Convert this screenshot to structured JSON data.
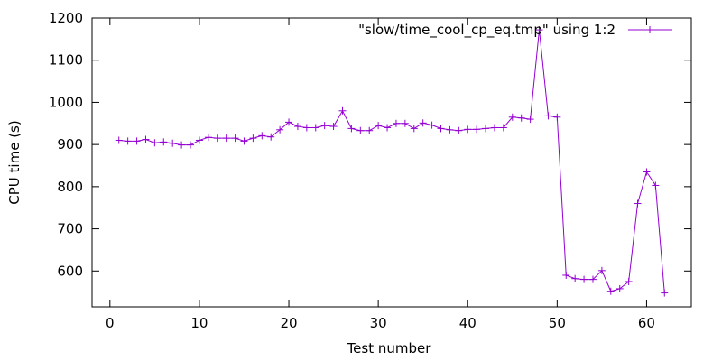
{
  "chart_data": {
    "type": "line",
    "xlabel": "Test number",
    "ylabel": "CPU time (s)",
    "xlim": [
      -2,
      65
    ],
    "ylim": [
      515,
      1200
    ],
    "x_ticks": [
      0,
      10,
      20,
      30,
      40,
      50,
      60
    ],
    "y_ticks": [
      600,
      700,
      800,
      900,
      1000,
      1100,
      1200
    ],
    "x_tick_labels": [
      "0",
      "10",
      "20",
      "30",
      "40",
      "50",
      "60"
    ],
    "y_tick_labels": [
      "600",
      "700",
      "800",
      "900",
      "1000",
      "1100",
      "1200"
    ],
    "grid": false,
    "legend_position": "top-right",
    "series": [
      {
        "name": "\"slow/time_cool_cp_eq.tmp\" using 1:2",
        "color": "#9400d3",
        "marker": "plus",
        "x": [
          1,
          2,
          3,
          4,
          5,
          6,
          7,
          8,
          9,
          10,
          11,
          12,
          13,
          14,
          15,
          16,
          17,
          18,
          19,
          20,
          21,
          22,
          23,
          24,
          25,
          26,
          27,
          28,
          29,
          30,
          31,
          32,
          33,
          34,
          35,
          36,
          37,
          38,
          39,
          40,
          41,
          42,
          43,
          44,
          45,
          46,
          47,
          48,
          49,
          50,
          51,
          52,
          53,
          54,
          55,
          56,
          57,
          58,
          59,
          60,
          61,
          62
        ],
        "y": [
          910,
          908,
          908,
          912,
          904,
          906,
          903,
          899,
          899,
          910,
          917,
          915,
          915,
          915,
          908,
          915,
          921,
          918,
          935,
          953,
          943,
          940,
          940,
          945,
          943,
          980,
          938,
          933,
          933,
          945,
          940,
          950,
          950,
          938,
          951,
          946,
          938,
          935,
          933,
          936,
          936,
          938,
          940,
          940,
          965,
          963,
          960,
          1172,
          968,
          965,
          590,
          582,
          580,
          580,
          601,
          552,
          558,
          575,
          760,
          835,
          803,
          548
        ]
      }
    ]
  }
}
